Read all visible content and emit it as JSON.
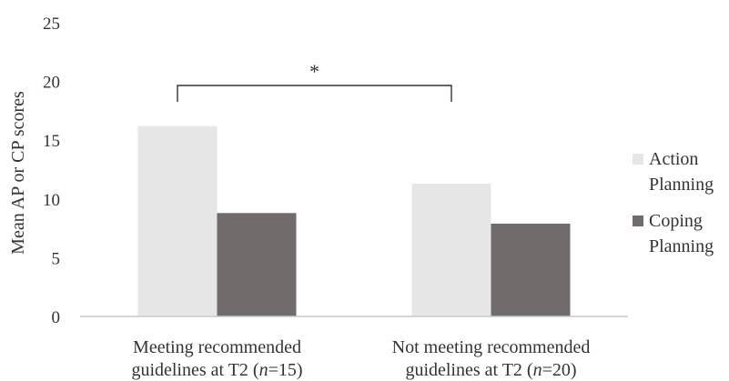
{
  "chart_data": {
    "type": "bar",
    "title": "",
    "xlabel": "",
    "ylabel": "Mean AP or CP scores",
    "ylim": [
      0,
      25
    ],
    "yticks": [
      0,
      5,
      10,
      15,
      20,
      25
    ],
    "grid": false,
    "legend_position": "right",
    "categories": [
      {
        "line1": "Meeting recommended",
        "line2_pre": "guidelines at T2 (",
        "n_italic": "n",
        "line2_post": "=15)"
      },
      {
        "line1": "Not meeting recommended",
        "line2_pre": "guidelines at T2 (",
        "n_italic": "n",
        "line2_post": "=20)"
      }
    ],
    "series": [
      {
        "name_line1": "Action",
        "name_line2": "Planning",
        "color": "#e6e6e6",
        "values": [
          16.2,
          11.3
        ]
      },
      {
        "name_line1": "Coping",
        "name_line2": "Planning",
        "color": "#716b6b",
        "values": [
          8.8,
          7.9
        ]
      }
    ],
    "annotation": {
      "text": "*",
      "between_categories": [
        0,
        1
      ]
    }
  }
}
